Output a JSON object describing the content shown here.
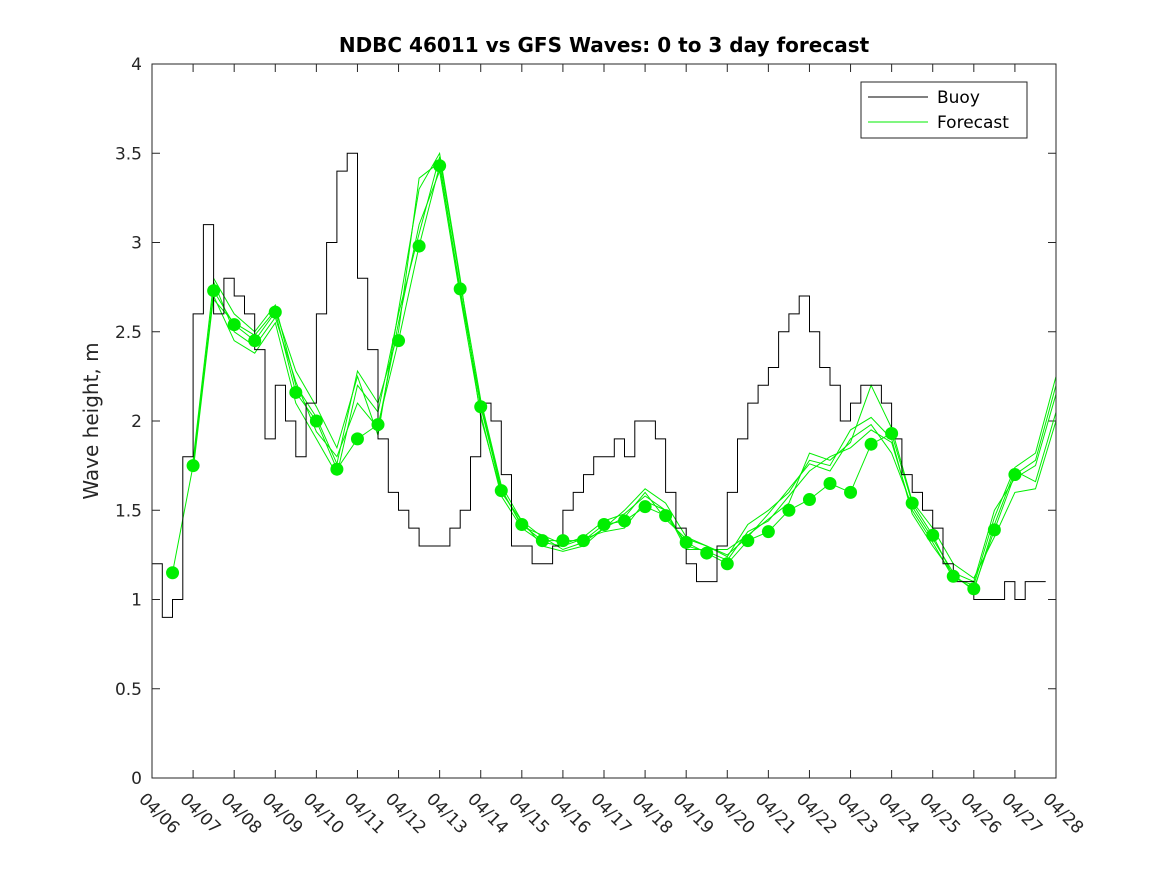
{
  "chart_data": {
    "type": "line",
    "title": "NDBC 46011 vs GFS Waves: 0 to 3 day forecast",
    "xlabel": "",
    "ylabel": "Wave height, m",
    "ylim": [
      0,
      4
    ],
    "xlim_days": [
      0,
      22
    ],
    "y_ticks": [
      "0",
      "0.5",
      "1",
      "1.5",
      "2",
      "2.5",
      "3",
      "3.5",
      "4"
    ],
    "x_ticks": [
      "04/06",
      "04/07",
      "04/08",
      "04/09",
      "04/10",
      "04/11",
      "04/12",
      "04/13",
      "04/14",
      "04/15",
      "04/16",
      "04/17",
      "04/18",
      "04/19",
      "04/20",
      "04/21",
      "04/22",
      "04/23",
      "04/24",
      "04/25",
      "04/26",
      "04/27",
      "04/28"
    ],
    "grid": false,
    "legend": {
      "placement": "top-right",
      "entries": [
        "Buoy",
        "Forecast"
      ]
    },
    "colors": {
      "buoy": "#000000",
      "forecast": "#00ee00",
      "markers": "#00ee00"
    },
    "buoy": {
      "name": "Buoy",
      "x": [
        0,
        0.25,
        0.5,
        0.75,
        1,
        1.25,
        1.5,
        1.75,
        2,
        2.25,
        2.5,
        2.75,
        3,
        3.25,
        3.5,
        3.75,
        4,
        4.25,
        4.5,
        4.75,
        5,
        5.25,
        5.5,
        5.75,
        6,
        6.25,
        6.5,
        6.75,
        7,
        7.25,
        7.5,
        7.75,
        8,
        8.25,
        8.5,
        8.75,
        9,
        9.25,
        9.5,
        9.75,
        10,
        10.25,
        10.5,
        10.75,
        11,
        11.25,
        11.5,
        11.75,
        12,
        12.25,
        12.5,
        12.75,
        13,
        13.25,
        13.5,
        13.75,
        14,
        14.25,
        14.5,
        14.75,
        15,
        15.25,
        15.5,
        15.75,
        16,
        16.25,
        16.5,
        16.75,
        17,
        17.25,
        17.5,
        17.75,
        18,
        18.25,
        18.5,
        18.75,
        19,
        19.25,
        19.5,
        19.75,
        20,
        20.25,
        20.5,
        20.75,
        21,
        21.25,
        21.5
      ],
      "y": [
        1.2,
        0.9,
        1.0,
        1.8,
        2.6,
        3.1,
        2.6,
        2.8,
        2.7,
        2.6,
        2.4,
        1.9,
        2.2,
        2.0,
        1.8,
        2.1,
        2.6,
        3.0,
        3.4,
        3.5,
        2.8,
        2.4,
        1.9,
        1.6,
        1.5,
        1.4,
        1.3,
        1.3,
        1.3,
        1.4,
        1.5,
        1.8,
        2.1,
        2.0,
        1.7,
        1.3,
        1.3,
        1.2,
        1.2,
        1.3,
        1.5,
        1.6,
        1.7,
        1.8,
        1.8,
        1.9,
        1.8,
        2.0,
        2.0,
        1.9,
        1.6,
        1.4,
        1.2,
        1.1,
        1.1,
        1.3,
        1.6,
        1.9,
        2.1,
        2.2,
        2.3,
        2.5,
        2.6,
        2.7,
        2.5,
        2.3,
        2.2,
        2.0,
        2.1,
        2.2,
        2.2,
        2.1,
        1.9,
        1.7,
        1.6,
        1.5,
        1.4,
        1.2,
        1.1,
        1.1,
        1.0,
        1.0,
        1.0,
        1.1,
        1.0,
        1.1,
        1.1
      ]
    },
    "forecast_runs": [
      {
        "name": "Forecast",
        "x": [
          0.5,
          1,
          1.5,
          2,
          2.5,
          3,
          3.5,
          4,
          4.5,
          5,
          5.5,
          6,
          6.5,
          7,
          7.5,
          8,
          8.5,
          9,
          9.5,
          10,
          10.5,
          11,
          11.5,
          12,
          12.5,
          13,
          13.5,
          14,
          14.5,
          15,
          15.5,
          16,
          16.5,
          17,
          17.5,
          18,
          18.5,
          19,
          19.5,
          20,
          20.5,
          21,
          21.5,
          22
        ],
        "y": [
          1.15,
          1.75,
          2.73,
          2.54,
          2.45,
          2.61,
          2.16,
          2.0,
          1.73,
          1.9,
          1.98,
          2.45,
          2.98,
          3.43,
          2.74,
          2.08,
          1.61,
          1.42,
          1.33,
          1.33,
          1.33,
          1.42,
          1.44,
          1.52,
          1.47,
          1.32,
          1.26,
          1.2,
          1.33,
          1.38,
          1.5,
          1.56,
          1.65,
          1.6,
          1.87,
          1.93,
          1.54,
          1.36,
          1.13,
          1.06,
          1.39,
          1.7,
          1.78,
          2.2
        ]
      },
      {
        "name": "",
        "x": [
          1,
          1.5,
          2,
          2.5,
          3,
          3.5,
          4,
          4.5,
          5,
          5.5,
          6,
          6.5,
          7,
          7.5,
          8,
          8.5,
          9,
          9.5,
          10,
          10.5,
          11,
          11.5,
          12,
          12.5,
          13,
          13.5,
          14,
          14.5,
          15,
          15.5,
          16,
          16.5,
          17,
          17.5,
          18,
          18.5,
          19,
          19.5,
          20,
          20.5,
          21,
          21.5,
          22
        ],
        "y": [
          1.78,
          2.78,
          2.5,
          2.42,
          2.58,
          2.22,
          1.94,
          1.8,
          2.1,
          1.96,
          2.55,
          3.1,
          3.4,
          2.7,
          2.04,
          1.58,
          1.4,
          1.32,
          1.3,
          1.34,
          1.38,
          1.4,
          1.55,
          1.5,
          1.3,
          1.27,
          1.22,
          1.38,
          1.44,
          1.58,
          1.72,
          1.8,
          1.85,
          1.95,
          1.88,
          1.5,
          1.32,
          1.12,
          1.08,
          1.46,
          1.74,
          1.82,
          2.25
        ]
      },
      {
        "name": "",
        "x": [
          1,
          1.5,
          2,
          2.5,
          3,
          3.5,
          4,
          4.5,
          5,
          5.5,
          6,
          6.5,
          7,
          7.5,
          8,
          8.5,
          9,
          9.5,
          10,
          10.5,
          11,
          11.5,
          12,
          12.5,
          13,
          13.5,
          14,
          14.5,
          15,
          15.5,
          16,
          16.5,
          17,
          17.5,
          18,
          18.5,
          19,
          19.5,
          20,
          20.5,
          21,
          21.5,
          22
        ],
        "y": [
          1.72,
          2.7,
          2.45,
          2.38,
          2.55,
          2.1,
          1.9,
          1.7,
          2.2,
          2.05,
          2.6,
          3.05,
          3.48,
          2.78,
          2.12,
          1.64,
          1.44,
          1.35,
          1.28,
          1.32,
          1.4,
          1.46,
          1.6,
          1.45,
          1.34,
          1.3,
          1.25,
          1.35,
          1.48,
          1.62,
          1.76,
          1.72,
          1.9,
          1.98,
          1.82,
          1.52,
          1.34,
          1.15,
          1.1,
          1.5,
          1.68,
          1.75,
          2.15
        ]
      },
      {
        "name": "",
        "x": [
          1.5,
          2,
          2.5,
          3,
          3.5,
          4,
          4.5,
          5,
          5.5,
          6,
          6.5,
          7,
          7.5,
          8,
          8.5,
          9,
          9.5,
          10,
          10.5,
          11,
          11.5,
          12,
          12.5,
          13,
          13.5,
          14,
          14.5,
          15,
          15.5,
          16,
          16.5,
          17,
          17.5,
          18,
          18.5,
          19,
          19.5,
          20,
          20.5,
          21,
          21.5,
          22
        ],
        "y": [
          2.68,
          2.55,
          2.48,
          2.62,
          2.28,
          2.08,
          1.85,
          2.25,
          1.92,
          2.62,
          3.3,
          3.5,
          2.8,
          2.02,
          1.6,
          1.44,
          1.3,
          1.27,
          1.3,
          1.4,
          1.5,
          1.62,
          1.54,
          1.35,
          1.3,
          1.24,
          1.42,
          1.5,
          1.6,
          1.78,
          1.75,
          1.95,
          2.02,
          1.9,
          1.48,
          1.3,
          1.14,
          1.05,
          1.42,
          1.72,
          1.66,
          2.05
        ]
      },
      {
        "name": "",
        "x": [
          1.5,
          2,
          2.5,
          3,
          3.5,
          4,
          4.5,
          5,
          5.5,
          6,
          6.5,
          7,
          7.5,
          8,
          8.5,
          9,
          9.5,
          10,
          10.5,
          11,
          11.5,
          12,
          12.5,
          13,
          13.5,
          14,
          14.5,
          15,
          15.5,
          16,
          16.5,
          17,
          17.5,
          18,
          18.5,
          19,
          19.5,
          20,
          20.5,
          21,
          21.5,
          22
        ],
        "y": [
          2.8,
          2.6,
          2.5,
          2.65,
          2.2,
          2.02,
          1.76,
          2.28,
          2.1,
          2.5,
          3.36,
          3.45,
          2.72,
          2.1,
          1.62,
          1.41,
          1.36,
          1.31,
          1.35,
          1.44,
          1.48,
          1.58,
          1.5,
          1.28,
          1.28,
          1.28,
          1.36,
          1.45,
          1.54,
          1.82,
          1.78,
          1.88,
          2.2,
          1.96,
          1.55,
          1.4,
          1.2,
          1.12,
          1.35,
          1.6,
          1.62,
          2.0
        ]
      }
    ]
  }
}
